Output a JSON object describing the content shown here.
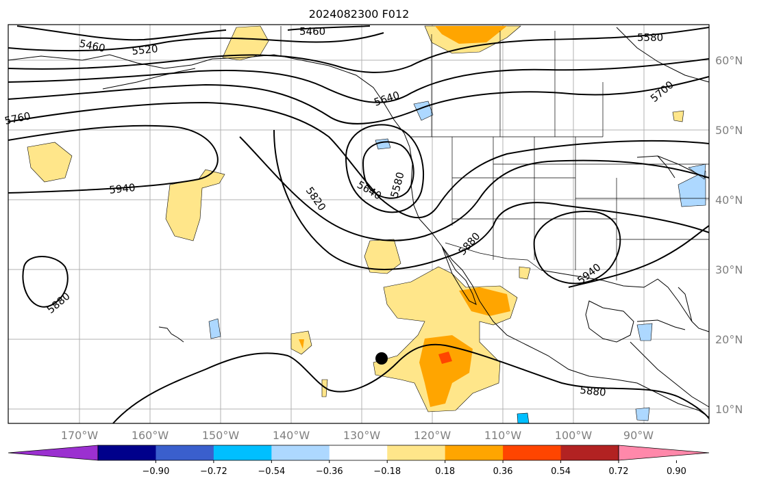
{
  "map": {
    "title": "2024082300 F012",
    "lat_labels": [
      "60°N",
      "50°N",
      "40°N",
      "30°N",
      "20°N",
      "10°N"
    ],
    "lon_labels": [
      "170°W",
      "160°W",
      "150°W",
      "140°W",
      "130°W",
      "120°W",
      "110°W",
      "100°W",
      "90°W"
    ],
    "contour_labels": [
      "5460",
      "5520",
      "5460",
      "5580",
      "5640",
      "5700",
      "5760",
      "5940",
      "5820",
      "5640",
      "5580",
      "5880",
      "5940",
      "5880",
      "5880"
    ]
  },
  "colorbar": {
    "ticks": [
      "−0.90",
      "−0.72",
      "−0.54",
      "−0.36",
      "−0.18",
      "0.18",
      "0.36",
      "0.54",
      "0.72",
      "0.90"
    ],
    "colors": [
      "#9b30d0",
      "#00008b",
      "#3a5fcd",
      "#00bfff",
      "#add8ff",
      "#ffffff",
      "#ffe68a",
      "#ffa500",
      "#ff4500",
      "#b22222",
      "#ff88aa"
    ]
  },
  "palette": {
    "pos1": "#ffe68a",
    "pos2": "#ffa500",
    "pos3": "#ff4500",
    "neg1": "#add8ff",
    "neg2": "#00bfff"
  }
}
